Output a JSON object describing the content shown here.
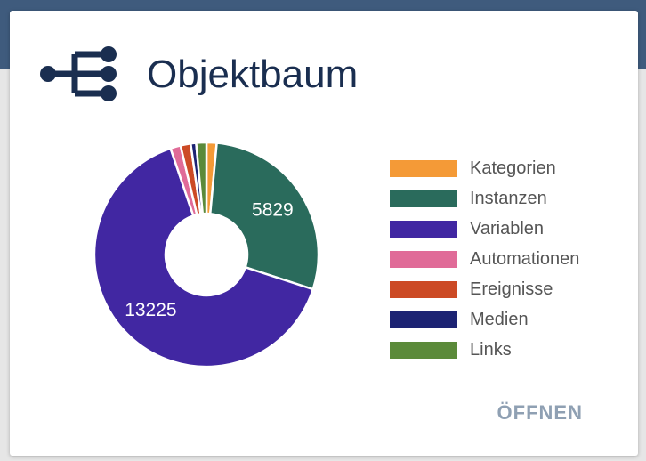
{
  "header": {
    "title": "Objektbaum",
    "icon": "tree-structure-icon",
    "icon_color": "#1a2e50"
  },
  "chart_data": {
    "type": "pie",
    "variant": "donut",
    "categories": [
      "Kategorien",
      "Instanzen",
      "Variablen",
      "Automationen",
      "Ereignisse",
      "Medien",
      "Links"
    ],
    "values": [
      300,
      5829,
      13225,
      300,
      300,
      160,
      300
    ],
    "data_labels": [
      "",
      "5829",
      "13225",
      "",
      "",
      "",
      ""
    ],
    "colors": [
      "#f49a37",
      "#2a6b5c",
      "#4127a2",
      "#e06b98",
      "#cc4a25",
      "#1c2373",
      "#5b8a3a"
    ],
    "legend_position": "right"
  },
  "actions": {
    "open_label": "ÖFFNEN"
  }
}
